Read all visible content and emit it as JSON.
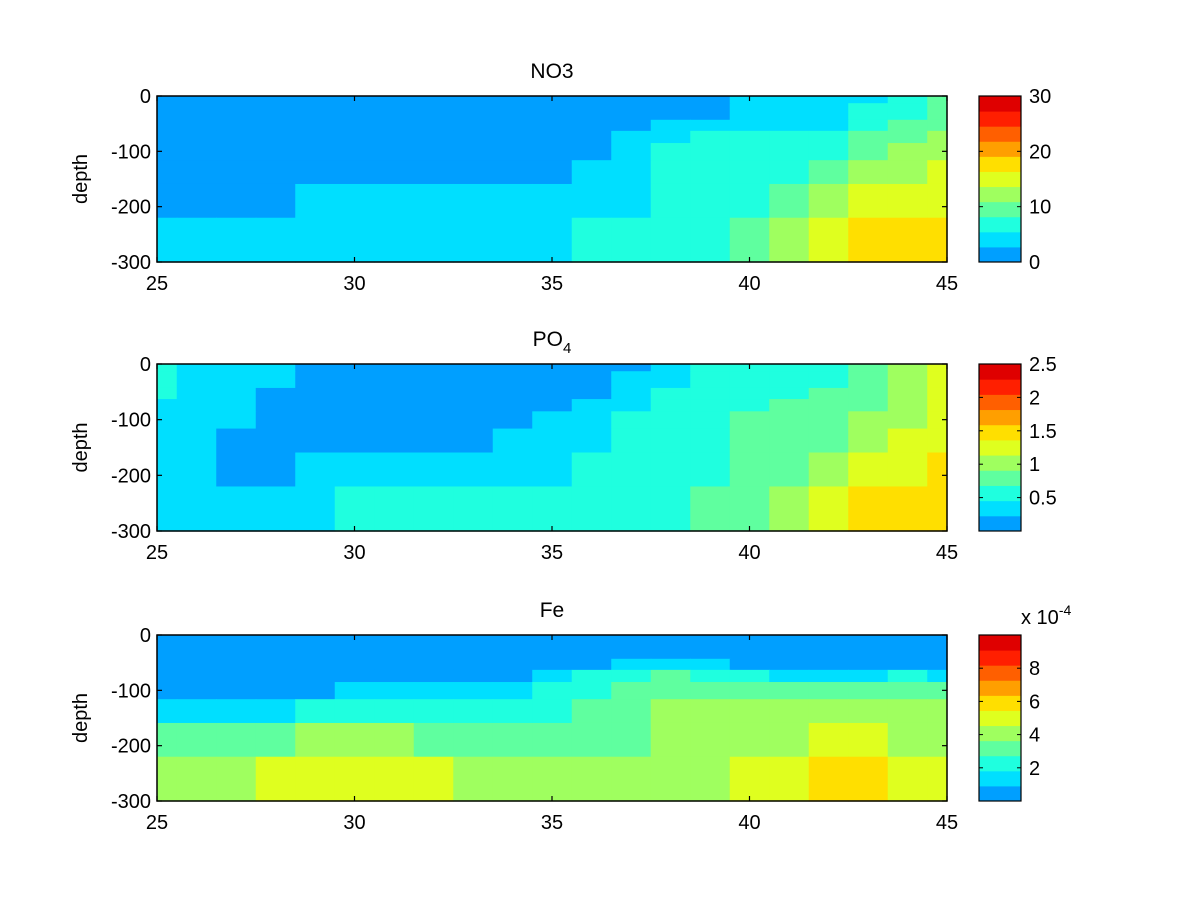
{
  "colormap": [
    "#009fff",
    "#00dfff",
    "#1fffdf",
    "#5fff9f",
    "#9fff5f",
    "#dfff1f",
    "#ffdf00",
    "#ff9f00",
    "#ff5f00",
    "#ff1f00",
    "#df0000"
  ],
  "chart_data": [
    {
      "type": "heatmap",
      "title": "NO3",
      "title_subscript": "",
      "ylabel": "depth",
      "xlim": [
        25,
        45
      ],
      "ylim": [
        -300,
        0
      ],
      "x": [
        25,
        26,
        27,
        28,
        29,
        30,
        31,
        32,
        33,
        34,
        35,
        36,
        37,
        38,
        39,
        40,
        41,
        42,
        43,
        44,
        45
      ],
      "depth_edges": [
        0,
        -13,
        -43,
        -63,
        -85,
        -116,
        -159,
        -220,
        -300
      ],
      "xticks": [
        "25",
        "30",
        "35",
        "40",
        "45"
      ],
      "yticks": [
        "0",
        "-100",
        "-200",
        "-300"
      ],
      "clim": [
        0,
        30
      ],
      "cbar_ticks": [
        "0",
        "10",
        "20",
        "30"
      ],
      "cbar_multiplier": "",
      "cbar_exponent": "",
      "values": [
        [
          1.4,
          1.4,
          1.4,
          1.4,
          1.4,
          1.4,
          1.4,
          1.4,
          1.4,
          1.4,
          1.4,
          1.4,
          1.4,
          1.4,
          1.4,
          4.1,
          4.1,
          4.1,
          4.1,
          6.8,
          9.5
        ],
        [
          1.4,
          1.4,
          1.4,
          1.4,
          1.4,
          1.4,
          1.4,
          1.4,
          1.4,
          1.4,
          1.4,
          1.4,
          1.4,
          1.4,
          1.4,
          4.1,
          4.1,
          4.1,
          6.8,
          6.8,
          9.5
        ],
        [
          1.4,
          1.4,
          1.4,
          1.4,
          1.4,
          1.4,
          1.4,
          1.4,
          1.4,
          1.4,
          1.4,
          1.4,
          1.4,
          4.1,
          4.1,
          4.1,
          4.1,
          4.1,
          6.8,
          9.5,
          9.5
        ],
        [
          1.4,
          1.4,
          1.4,
          1.4,
          1.4,
          1.4,
          1.4,
          1.4,
          1.4,
          1.4,
          1.4,
          1.4,
          4.1,
          4.1,
          6.8,
          6.8,
          6.8,
          6.8,
          9.5,
          9.5,
          12.3
        ],
        [
          1.4,
          1.4,
          1.4,
          1.4,
          1.4,
          1.4,
          1.4,
          1.4,
          1.4,
          1.4,
          1.4,
          1.4,
          4.1,
          6.8,
          6.8,
          6.8,
          6.8,
          6.8,
          9.5,
          12.3,
          12.3
        ],
        [
          1.4,
          1.4,
          1.4,
          1.4,
          1.4,
          1.4,
          1.4,
          1.4,
          1.4,
          1.4,
          1.4,
          4.1,
          4.1,
          6.8,
          6.8,
          6.8,
          6.8,
          9.5,
          12.3,
          12.3,
          15.0
        ],
        [
          1.4,
          1.4,
          1.4,
          1.4,
          4.1,
          4.1,
          4.1,
          4.1,
          4.1,
          4.1,
          4.1,
          4.1,
          4.1,
          6.8,
          6.8,
          6.8,
          9.5,
          12.3,
          15.0,
          15.0,
          15.0
        ],
        [
          4.1,
          4.1,
          4.1,
          4.1,
          4.1,
          4.1,
          4.1,
          4.1,
          4.1,
          4.1,
          4.1,
          6.8,
          6.8,
          6.8,
          6.8,
          9.5,
          12.3,
          15.0,
          17.7,
          17.7,
          17.7
        ]
      ]
    },
    {
      "type": "heatmap",
      "title": "PO",
      "title_subscript": "4",
      "ylabel": "depth",
      "xlim": [
        25,
        45
      ],
      "ylim": [
        -300,
        0
      ],
      "x": [
        25,
        26,
        27,
        28,
        29,
        30,
        31,
        32,
        33,
        34,
        35,
        36,
        37,
        38,
        39,
        40,
        41,
        42,
        43,
        44,
        45
      ],
      "depth_edges": [
        0,
        -13,
        -43,
        -63,
        -85,
        -116,
        -159,
        -220,
        -300
      ],
      "xticks": [
        "25",
        "30",
        "35",
        "40",
        "45"
      ],
      "yticks": [
        "0",
        "-100",
        "-200",
        "-300"
      ],
      "clim": [
        0,
        2.5
      ],
      "cbar_ticks": [
        "0.5",
        "1",
        "1.5",
        "2",
        "2.5"
      ],
      "cbar_multiplier": "",
      "cbar_exponent": "",
      "values": [
        [
          0.57,
          0.34,
          0.34,
          0.34,
          0.11,
          0.11,
          0.11,
          0.11,
          0.11,
          0.11,
          0.11,
          0.11,
          0.11,
          0.34,
          0.57,
          0.57,
          0.57,
          0.57,
          0.8,
          1.02,
          1.25
        ],
        [
          0.57,
          0.34,
          0.34,
          0.34,
          0.11,
          0.11,
          0.11,
          0.11,
          0.11,
          0.11,
          0.11,
          0.11,
          0.34,
          0.34,
          0.57,
          0.57,
          0.57,
          0.57,
          0.8,
          1.02,
          1.25
        ],
        [
          0.57,
          0.34,
          0.34,
          0.11,
          0.11,
          0.11,
          0.11,
          0.11,
          0.11,
          0.11,
          0.11,
          0.11,
          0.34,
          0.57,
          0.57,
          0.57,
          0.57,
          0.8,
          0.8,
          1.02,
          1.25
        ],
        [
          0.34,
          0.34,
          0.34,
          0.11,
          0.11,
          0.11,
          0.11,
          0.11,
          0.11,
          0.11,
          0.11,
          0.34,
          0.34,
          0.57,
          0.57,
          0.57,
          0.8,
          0.8,
          0.8,
          1.02,
          1.25
        ],
        [
          0.34,
          0.34,
          0.34,
          0.11,
          0.11,
          0.11,
          0.11,
          0.11,
          0.11,
          0.11,
          0.34,
          0.34,
          0.57,
          0.57,
          0.57,
          0.8,
          0.8,
          0.8,
          1.02,
          1.02,
          1.25
        ],
        [
          0.34,
          0.34,
          0.11,
          0.11,
          0.11,
          0.11,
          0.11,
          0.11,
          0.11,
          0.34,
          0.34,
          0.34,
          0.57,
          0.57,
          0.57,
          0.8,
          0.8,
          0.8,
          1.02,
          1.25,
          1.25
        ],
        [
          0.34,
          0.34,
          0.11,
          0.11,
          0.34,
          0.34,
          0.34,
          0.34,
          0.34,
          0.34,
          0.34,
          0.57,
          0.57,
          0.57,
          0.57,
          0.8,
          0.8,
          1.02,
          1.25,
          1.25,
          1.48
        ],
        [
          0.34,
          0.34,
          0.34,
          0.34,
          0.34,
          0.57,
          0.57,
          0.57,
          0.57,
          0.57,
          0.57,
          0.57,
          0.57,
          0.57,
          0.8,
          0.8,
          1.02,
          1.25,
          1.48,
          1.48,
          1.48
        ]
      ]
    },
    {
      "type": "heatmap",
      "title": "Fe",
      "title_subscript": "",
      "ylabel": "depth",
      "xlim": [
        25,
        45
      ],
      "ylim": [
        -300,
        0
      ],
      "x": [
        25,
        26,
        27,
        28,
        29,
        30,
        31,
        32,
        33,
        34,
        35,
        36,
        37,
        38,
        39,
        40,
        41,
        42,
        43,
        44,
        45
      ],
      "depth_edges": [
        0,
        -13,
        -43,
        -63,
        -85,
        -116,
        -159,
        -220,
        -300
      ],
      "xticks": [
        "25",
        "30",
        "35",
        "40",
        "45"
      ],
      "yticks": [
        "0",
        "-100",
        "-200",
        "-300"
      ],
      "clim": [
        0,
        10
      ],
      "value_scale": "x 10^-4",
      "cbar_ticks": [
        "2",
        "4",
        "6",
        "8"
      ],
      "cbar_multiplier": "x 10",
      "cbar_exponent": "-4",
      "values": [
        [
          0.45,
          0.45,
          0.45,
          0.45,
          0.45,
          0.45,
          0.45,
          0.45,
          0.45,
          0.45,
          0.45,
          0.45,
          0.45,
          0.45,
          0.45,
          0.45,
          0.45,
          0.45,
          0.45,
          0.45,
          0.45
        ],
        [
          0.45,
          0.45,
          0.45,
          0.45,
          0.45,
          0.45,
          0.45,
          0.45,
          0.45,
          0.45,
          0.45,
          0.45,
          0.45,
          0.45,
          0.45,
          0.45,
          0.45,
          0.45,
          0.45,
          0.45,
          0.45
        ],
        [
          0.45,
          0.45,
          0.45,
          0.45,
          0.45,
          0.45,
          0.45,
          0.45,
          0.45,
          0.45,
          0.45,
          0.45,
          1.36,
          1.36,
          1.36,
          0.45,
          0.45,
          0.45,
          0.45,
          0.45,
          0.45
        ],
        [
          0.45,
          0.45,
          0.45,
          0.45,
          0.45,
          0.45,
          0.45,
          0.45,
          0.45,
          0.45,
          1.36,
          2.27,
          2.27,
          3.18,
          2.27,
          2.27,
          1.36,
          1.36,
          1.36,
          2.27,
          1.36
        ],
        [
          0.45,
          0.45,
          0.45,
          0.45,
          0.45,
          1.36,
          1.36,
          1.36,
          1.36,
          1.36,
          2.27,
          2.27,
          3.18,
          3.18,
          3.18,
          3.18,
          3.18,
          3.18,
          3.18,
          3.18,
          3.18
        ],
        [
          1.36,
          1.36,
          1.36,
          1.36,
          2.27,
          2.27,
          2.27,
          2.27,
          2.27,
          2.27,
          2.27,
          3.18,
          3.18,
          4.09,
          4.09,
          4.09,
          4.09,
          4.09,
          4.09,
          4.09,
          4.09
        ],
        [
          3.18,
          3.18,
          3.18,
          3.18,
          4.09,
          4.09,
          4.09,
          3.18,
          3.18,
          3.18,
          3.18,
          3.18,
          3.18,
          4.09,
          4.09,
          4.09,
          4.09,
          5.0,
          5.0,
          4.09,
          4.09
        ],
        [
          4.09,
          4.09,
          4.09,
          5.0,
          5.0,
          5.0,
          5.0,
          5.0,
          4.09,
          4.09,
          4.09,
          4.09,
          4.09,
          4.09,
          4.09,
          5.0,
          5.0,
          5.91,
          5.91,
          5.0,
          5.0
        ]
      ]
    }
  ]
}
